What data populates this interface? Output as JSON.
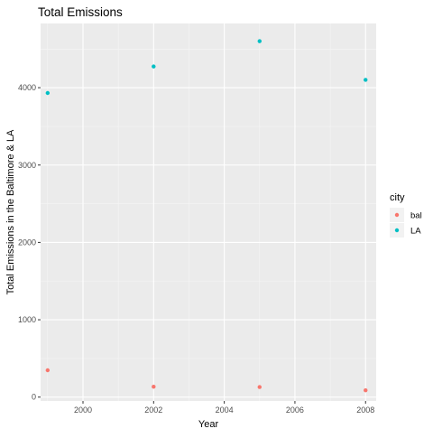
{
  "chart_data": {
    "type": "scatter",
    "title": "Total Emissions",
    "xlabel": "Year",
    "ylabel": "Total Emissions in the Baltimore & LA",
    "xlim": [
      1998.8,
      2008.3
    ],
    "ylim": [
      -50,
      4830
    ],
    "x_ticks": [
      2000,
      2002,
      2004,
      2006,
      2008
    ],
    "y_ticks": [
      0,
      1000,
      2000,
      3000,
      4000
    ],
    "grid": true,
    "legend": {
      "title": "city",
      "position": "right"
    },
    "series": [
      {
        "name": "bal",
        "color": "#F8766D",
        "points": [
          {
            "x": 1999,
            "y": 347
          },
          {
            "x": 2002,
            "y": 134
          },
          {
            "x": 2005,
            "y": 130
          },
          {
            "x": 2008,
            "y": 88
          }
        ]
      },
      {
        "name": "LA",
        "color": "#00BFC4",
        "points": [
          {
            "x": 1999,
            "y": 3931
          },
          {
            "x": 2002,
            "y": 4274
          },
          {
            "x": 2005,
            "y": 4601
          },
          {
            "x": 2008,
            "y": 4101
          }
        ]
      }
    ]
  }
}
